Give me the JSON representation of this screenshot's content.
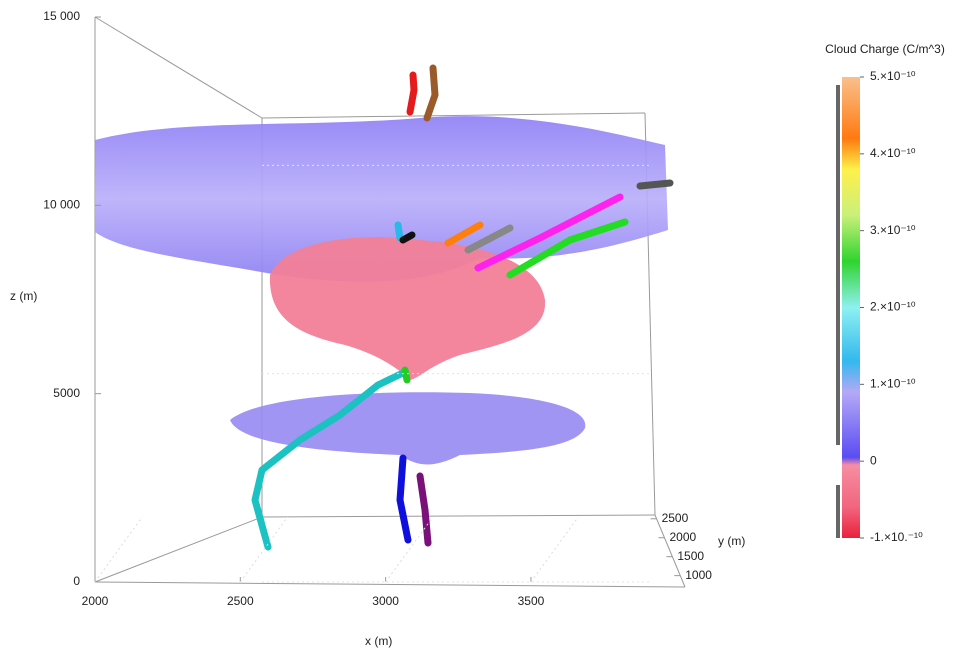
{
  "chart_data": {
    "type": "surface3d",
    "xlabel": "x (m)",
    "ylabel": "y (m)",
    "zlabel": "z (m)",
    "xlim": [
      2000,
      4030
    ],
    "xticks": [
      2000,
      2500,
      3000,
      3500
    ],
    "ylim": [
      700,
      2600
    ],
    "yticks": [
      1000,
      1500,
      2000,
      2500
    ],
    "zlim": [
      0,
      15000
    ],
    "zticks": [
      0,
      5000,
      {
        "value": 10000,
        "label": "10 000"
      },
      {
        "value": 15000,
        "label": "15 000"
      }
    ],
    "colorbar": {
      "title": "Cloud Charge (C/m^3)",
      "clim": [
        -1e-10,
        5e-10
      ],
      "ticks": [
        {
          "value": 5e-10,
          "label": "5.×10⁻¹⁰"
        },
        {
          "value": 4e-10,
          "label": "4.×10⁻¹⁰"
        },
        {
          "value": 3e-10,
          "label": "3.×10⁻¹⁰"
        },
        {
          "value": 2e-10,
          "label": "2.×10⁻¹⁰"
        },
        {
          "value": 1e-10,
          "label": "1.×10⁻¹⁰"
        },
        0,
        {
          "value": -1e-10,
          "label": "-1.×10.⁻¹⁰"
        }
      ],
      "colormap": [
        [
          -1e-10,
          "#e8213c"
        ],
        [
          -6e-11,
          "#f2657e"
        ],
        [
          -5e-12,
          "#f58ea2"
        ],
        [
          5e-12,
          "#5b4cf2"
        ],
        [
          9e-11,
          "#b4a9f6"
        ],
        [
          1.3e-10,
          "#33b8ee"
        ],
        [
          2e-10,
          "#8ff0f0"
        ],
        [
          2.6e-10,
          "#2fd42f"
        ],
        [
          3.2e-10,
          "#c9f07a"
        ],
        [
          3.8e-10,
          "#fff04a"
        ],
        [
          4.2e-10,
          "#ff7a10"
        ],
        [
          5e-10,
          "#f9c08c"
        ]
      ]
    }
  }
}
